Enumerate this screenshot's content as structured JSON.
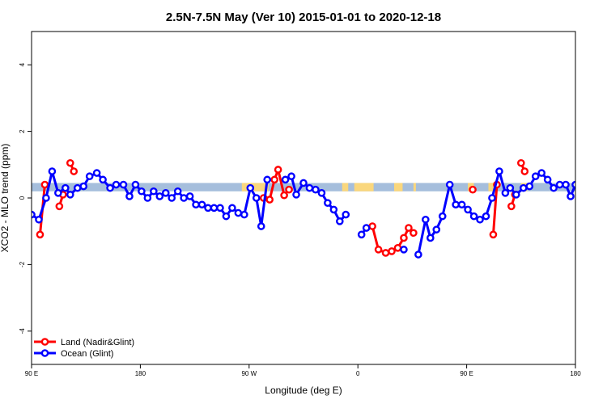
{
  "chart_data": {
    "type": "line",
    "title": "2.5N-7.5N May (Ver 10)   2015-01-01 to 2020-12-18",
    "xlabel": "Longitude (deg E)",
    "ylabel": "XCO2 - MLO trend (ppm)",
    "xlim": [
      90,
      540
    ],
    "ylim": [
      -5,
      5
    ],
    "x_ticks": [
      {
        "value": 90,
        "label": "90 E"
      },
      {
        "value": 180,
        "label": "180"
      },
      {
        "value": 270,
        "label": "90 W"
      },
      {
        "value": 360,
        "label": "0"
      },
      {
        "value": 450,
        "label": "90 E"
      },
      {
        "value": 540,
        "label": "180"
      }
    ],
    "y_ticks": [
      {
        "value": -4,
        "label": "-4"
      },
      {
        "value": -2,
        "label": "-2"
      },
      {
        "value": 0,
        "label": "0"
      },
      {
        "value": 2,
        "label": "2"
      },
      {
        "value": 4,
        "label": "4"
      }
    ],
    "legend_position": "bottom-left",
    "band": {
      "y_range": [
        0.2,
        0.45
      ],
      "ocean_color": "#a5bedc",
      "land_color": "#fad77d",
      "land_ranges": [
        [
          264,
          286
        ],
        [
          347,
          352
        ],
        [
          357,
          373
        ],
        [
          390,
          397
        ],
        [
          406,
          408
        ],
        [
          451,
          456
        ],
        [
          468,
          473
        ],
        [
          495,
          500
        ]
      ]
    },
    "series": [
      {
        "name": "Land (Nadir&Glint)",
        "color": "#ff0000",
        "segments": [
          [
            [
              97,
              -1.1
            ],
            [
              101,
              0.4
            ]
          ],
          [
            [
              113,
              -0.25
            ],
            [
              116,
              0.1
            ]
          ],
          [
            [
              122,
              1.05
            ],
            [
              125,
              0.8
            ]
          ],
          [
            [
              282,
              0.0
            ],
            [
              287,
              -0.05
            ],
            [
              291,
              0.55
            ],
            [
              294,
              0.85
            ],
            [
              299,
              0.08
            ],
            [
              303,
              0.25
            ]
          ],
          [
            [
              372,
              -0.85
            ],
            [
              377,
              -1.55
            ],
            [
              383,
              -1.65
            ],
            [
              388,
              -1.6
            ],
            [
              393,
              -1.5
            ],
            [
              398,
              -1.2
            ],
            [
              402,
              -0.9
            ],
            [
              406,
              -1.05
            ]
          ],
          [
            [
              455,
              0.25
            ]
          ],
          [
            [
              472,
              -1.1
            ],
            [
              475,
              0.4
            ]
          ],
          [
            [
              487,
              -0.25
            ],
            [
              490,
              0.1
            ]
          ],
          [
            [
              495,
              1.05
            ],
            [
              498,
              0.8
            ]
          ]
        ]
      },
      {
        "name": "Ocean (Glint)",
        "color": "#0000ff",
        "segments": [
          [
            [
              90,
              -0.5
            ],
            [
              96,
              -0.65
            ],
            [
              102,
              0.0
            ],
            [
              107,
              0.8
            ],
            [
              112,
              0.15
            ],
            [
              118,
              0.3
            ],
            [
              122,
              0.1
            ],
            [
              128,
              0.3
            ],
            [
              133,
              0.35
            ],
            [
              138,
              0.65
            ],
            [
              144,
              0.75
            ],
            [
              149,
              0.55
            ],
            [
              155,
              0.3
            ],
            [
              160,
              0.4
            ],
            [
              166,
              0.4
            ],
            [
              171,
              0.05
            ],
            [
              176,
              0.4
            ],
            [
              181,
              0.2
            ],
            [
              186,
              0.0
            ],
            [
              191,
              0.2
            ],
            [
              196,
              0.05
            ],
            [
              201,
              0.15
            ],
            [
              206,
              0.0
            ],
            [
              211,
              0.2
            ],
            [
              216,
              0.0
            ],
            [
              221,
              0.05
            ],
            [
              226,
              -0.2
            ],
            [
              231,
              -0.2
            ],
            [
              236,
              -0.3
            ],
            [
              241,
              -0.3
            ],
            [
              246,
              -0.3
            ],
            [
              251,
              -0.55
            ],
            [
              256,
              -0.3
            ],
            [
              261,
              -0.45
            ],
            [
              266,
              -0.5
            ],
            [
              271,
              0.3
            ],
            [
              276,
              0.0
            ],
            [
              280,
              -0.85
            ],
            [
              285,
              0.55
            ]
          ],
          [
            [
              300,
              0.55
            ],
            [
              305,
              0.65
            ],
            [
              309,
              0.1
            ],
            [
              315,
              0.45
            ],
            [
              320,
              0.3
            ],
            [
              325,
              0.25
            ],
            [
              330,
              0.15
            ],
            [
              335,
              -0.15
            ],
            [
              340,
              -0.35
            ],
            [
              345,
              -0.7
            ],
            [
              350,
              -0.5
            ]
          ],
          [
            [
              363,
              -1.1
            ],
            [
              367,
              -0.9
            ]
          ],
          [
            [
              398,
              -1.55
            ]
          ],
          [
            [
              410,
              -1.7
            ],
            [
              416,
              -0.65
            ],
            [
              420,
              -1.2
            ],
            [
              425,
              -0.95
            ],
            [
              430,
              -0.55
            ],
            [
              436,
              0.4
            ],
            [
              441,
              -0.2
            ],
            [
              446,
              -0.2
            ],
            [
              451,
              -0.35
            ],
            [
              456,
              -0.55
            ],
            [
              461,
              -0.65
            ],
            [
              466,
              -0.55
            ],
            [
              471,
              0.0
            ],
            [
              477,
              0.8
            ],
            [
              482,
              0.15
            ],
            [
              486,
              0.3
            ],
            [
              491,
              0.1
            ],
            [
              497,
              0.3
            ],
            [
              502,
              0.35
            ],
            [
              507,
              0.65
            ],
            [
              512,
              0.75
            ],
            [
              517,
              0.55
            ],
            [
              522,
              0.3
            ],
            [
              527,
              0.4
            ],
            [
              532,
              0.4
            ],
            [
              536,
              0.05
            ],
            [
              540,
              0.4
            ],
            [
              544,
              0.2
            ]
          ]
        ]
      }
    ]
  }
}
